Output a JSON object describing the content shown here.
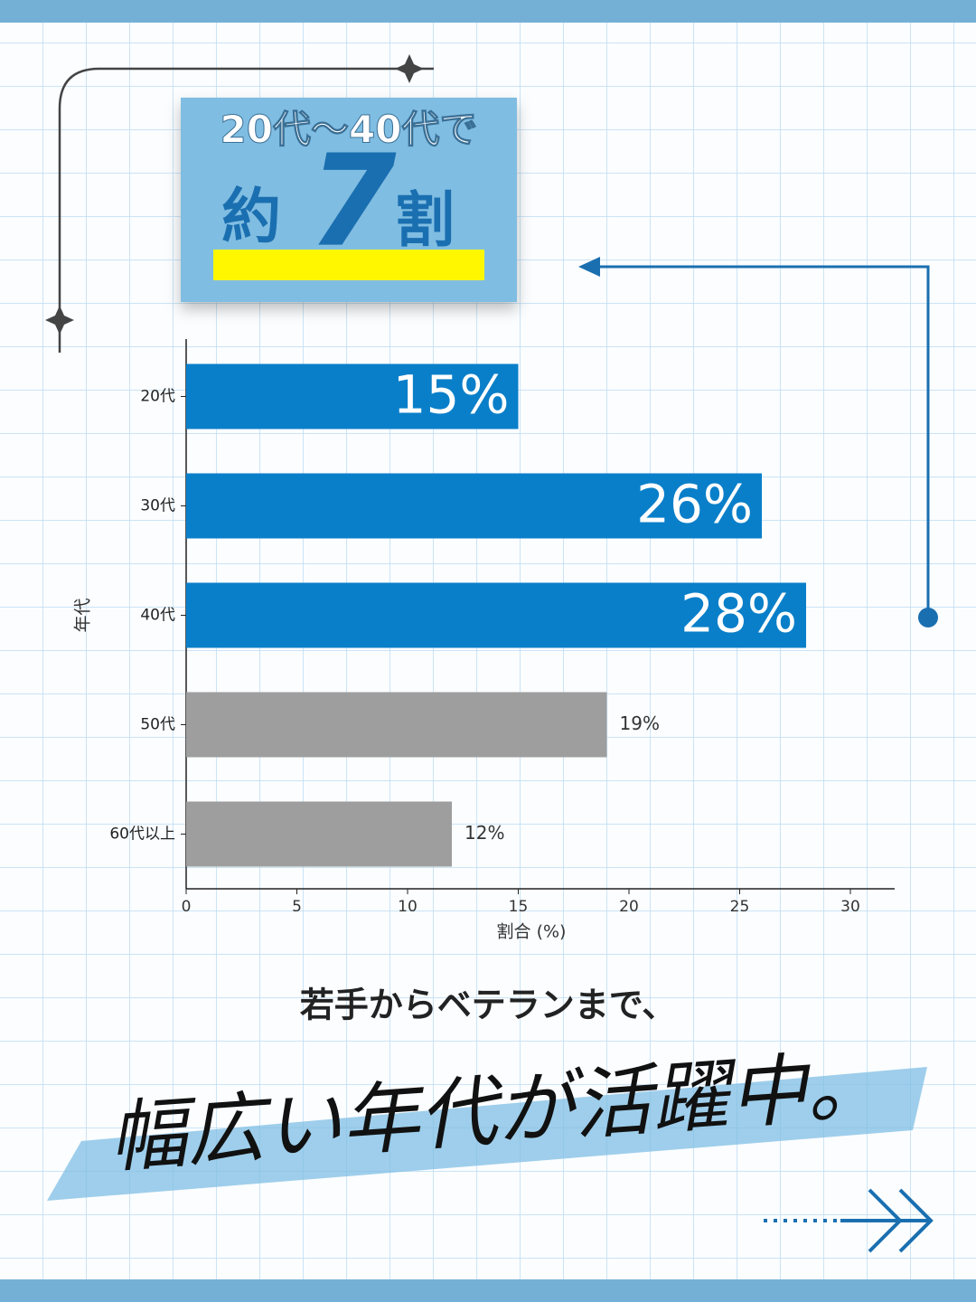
{
  "callout": {
    "line1": "20代〜40代で",
    "prefix": "約",
    "number": "7",
    "suffix": "割"
  },
  "chart_data": {
    "type": "barh",
    "categories": [
      "20代",
      "30代",
      "40代",
      "50代",
      "60代以上"
    ],
    "values": [
      15,
      26,
      28,
      19,
      12
    ],
    "value_labels": [
      "15%",
      "26%",
      "28%",
      "19%",
      "12%"
    ],
    "colors": [
      "#0a7fc9",
      "#0a7fc9",
      "#0a7fc9",
      "#9e9e9e",
      "#9e9e9e"
    ],
    "xlim": [
      0,
      32
    ],
    "xticks": [
      0,
      5,
      10,
      15,
      20,
      25,
      30
    ],
    "xlabel": "割合 (%)",
    "ylabel": "年代"
  },
  "caption": {
    "line1": "若手からベテランまで、",
    "line2": "幅広い年代が活躍中。"
  }
}
